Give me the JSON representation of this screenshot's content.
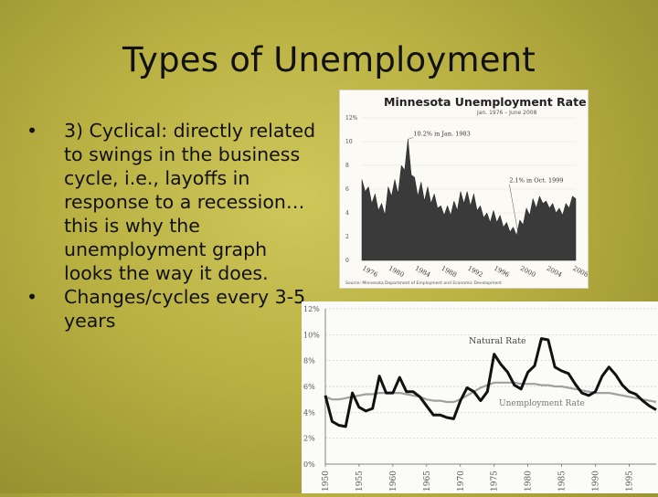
{
  "slide": {
    "title": "Types of Unemployment",
    "bullets": [
      "3) Cyclical: directly related to swings in the business cycle, i.e., layoffs in response to a recession…this is why the unemployment graph looks the way it does.",
      "Changes/cycles every 3-5 years"
    ]
  },
  "chart_data": [
    {
      "type": "area",
      "title": "Minnesota Unemployment Rate",
      "subtitle": "Jan. 1976 – June 2008",
      "source": "Source: Minnesota Department of Employment and Economic Development",
      "y_ticks": [
        "12%",
        "10",
        "8",
        "6",
        "4",
        "2",
        "0"
      ],
      "ylim": [
        0,
        12
      ],
      "x_ticks": [
        "1976",
        "1980",
        "1984",
        "1988",
        "1992",
        "1996",
        "2000",
        "2004",
        "2008"
      ],
      "xlim": [
        1976,
        2008.5
      ],
      "annotations": [
        {
          "label": "10.2% in Jan. 1983",
          "x": 1983.0,
          "y": 10.2
        },
        {
          "label": "2.1% in Oct. 1999",
          "x": 1999.8,
          "y": 2.1
        }
      ],
      "x": [
        1976,
        1976.5,
        1977,
        1977.5,
        1978,
        1978.5,
        1979,
        1979.5,
        1980,
        1980.5,
        1981,
        1981.5,
        1982,
        1982.5,
        1983,
        1983.5,
        1984,
        1984.5,
        1985,
        1985.5,
        1986,
        1986.5,
        1987,
        1987.5,
        1988,
        1988.5,
        1989,
        1989.5,
        1990,
        1990.5,
        1991,
        1991.5,
        1992,
        1992.5,
        1993,
        1993.5,
        1994,
        1994.5,
        1995,
        1995.5,
        1996,
        1996.5,
        1997,
        1997.5,
        1998,
        1998.5,
        1999,
        1999.5,
        2000,
        2000.5,
        2001,
        2001.5,
        2002,
        2002.5,
        2003,
        2003.5,
        2004,
        2004.5,
        2005,
        2005.5,
        2006,
        2006.5,
        2007,
        2007.5,
        2008,
        2008.5
      ],
      "values": [
        6.8,
        5.8,
        6.2,
        4.8,
        5.6,
        4.2,
        4.8,
        3.8,
        6.2,
        5.4,
        6.8,
        5.6,
        8.0,
        7.6,
        10.2,
        7.2,
        7.0,
        5.4,
        6.6,
        5.0,
        6.2,
        4.8,
        5.6,
        4.4,
        4.6,
        3.8,
        4.6,
        3.8,
        5.0,
        4.2,
        5.8,
        4.8,
        5.8,
        4.6,
        5.6,
        4.2,
        4.6,
        3.6,
        4.0,
        3.2,
        4.2,
        3.2,
        3.8,
        2.8,
        3.2,
        2.4,
        2.8,
        2.1,
        3.4,
        3.0,
        4.4,
        3.8,
        5.2,
        4.4,
        5.4,
        4.8,
        5.0,
        4.4,
        4.8,
        4.0,
        4.4,
        3.8,
        4.8,
        4.4,
        5.4,
        5.2
      ]
    },
    {
      "type": "line",
      "y_ticks": [
        "12%",
        "10%",
        "8%",
        "6%",
        "4%",
        "2%",
        "0%"
      ],
      "ylim": [
        0,
        12
      ],
      "x_ticks": [
        "1950",
        "1955",
        "1960",
        "1965",
        "1970",
        "1975",
        "1980",
        "1985",
        "1990",
        "1995"
      ],
      "xlim": [
        1950,
        1999
      ],
      "series_labels": [
        "Natural Rate",
        "Unemployment Rate"
      ],
      "x": [
        1950,
        1951,
        1952,
        1953,
        1954,
        1955,
        1956,
        1957,
        1958,
        1959,
        1960,
        1961,
        1962,
        1963,
        1964,
        1965,
        1966,
        1967,
        1968,
        1969,
        1970,
        1971,
        1972,
        1973,
        1974,
        1975,
        1976,
        1977,
        1978,
        1979,
        1980,
        1981,
        1982,
        1983,
        1984,
        1985,
        1986,
        1987,
        1988,
        1989,
        1990,
        1991,
        1992,
        1993,
        1994,
        1995,
        1996,
        1997,
        1998,
        1999
      ],
      "series": [
        {
          "values": [
            5.2,
            5.0,
            5.0,
            5.1,
            5.2,
            5.3,
            5.4,
            5.4,
            5.5,
            5.5,
            5.5,
            5.5,
            5.4,
            5.3,
            5.2,
            5.0,
            4.9,
            4.9,
            4.8,
            4.8,
            5.0,
            5.3,
            5.6,
            5.9,
            6.1,
            6.3,
            6.3,
            6.3,
            6.3,
            6.2,
            6.2,
            6.2,
            6.1,
            6.1,
            6.0,
            6.0,
            5.9,
            5.8,
            5.7,
            5.6,
            5.5,
            5.5,
            5.5,
            5.4,
            5.3,
            5.2,
            5.1,
            5.0,
            4.9,
            4.8
          ]
        },
        {
          "values": [
            5.3,
            3.3,
            3.0,
            2.9,
            5.5,
            4.4,
            4.1,
            4.3,
            6.8,
            5.5,
            5.5,
            6.7,
            5.6,
            5.6,
            5.2,
            4.5,
            3.8,
            3.8,
            3.6,
            3.5,
            4.9,
            5.9,
            5.6,
            4.9,
            5.6,
            8.5,
            7.7,
            7.1,
            6.1,
            5.8,
            7.1,
            7.6,
            9.7,
            9.6,
            7.5,
            7.2,
            7.0,
            6.2,
            5.5,
            5.3,
            5.6,
            6.8,
            7.5,
            6.9,
            6.1,
            5.6,
            5.4,
            4.9,
            4.5,
            4.2
          ]
        }
      ]
    }
  ]
}
